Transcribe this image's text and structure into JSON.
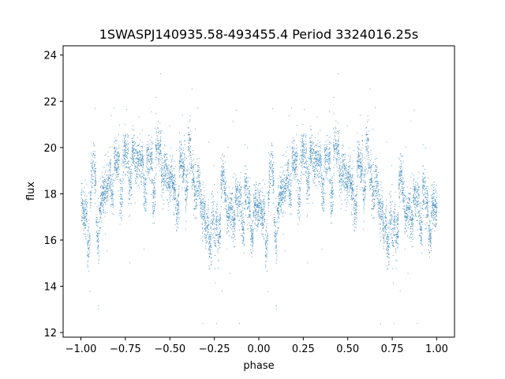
{
  "chart_data": {
    "type": "scatter",
    "title": "1SWASPJ140935.58-493455.4 Period 3324016.25s",
    "xlabel": "phase",
    "ylabel": "flux",
    "xlim": [
      -1.1,
      1.1
    ],
    "ylim": [
      11.8,
      24.4
    ],
    "xticks": [
      -1.0,
      -0.75,
      -0.5,
      -0.25,
      0.0,
      0.25,
      0.5,
      0.75,
      1.0
    ],
    "xtick_labels": [
      "−1.00",
      "−0.75",
      "−0.50",
      "−0.25",
      "0.00",
      "0.25",
      "0.50",
      "0.75",
      "1.00"
    ],
    "yticks": [
      12,
      14,
      16,
      18,
      20,
      22,
      24
    ],
    "ytick_labels": [
      "12",
      "14",
      "16",
      "18",
      "20",
      "22",
      "24"
    ],
    "grid": false,
    "series": [
      {
        "color": "#1f77b4",
        "period_phase": 1.0,
        "x": [
          -1.0,
          -0.99,
          -0.97,
          -0.95,
          -0.93,
          -0.9,
          -0.88,
          -0.85,
          -0.82,
          -0.8,
          -0.78,
          -0.75,
          -0.72,
          -0.7,
          -0.68,
          -0.65,
          -0.62,
          -0.6,
          -0.57,
          -0.55,
          -0.52,
          -0.5,
          -0.47,
          -0.45,
          -0.42,
          -0.4,
          -0.38,
          -0.35,
          -0.33,
          -0.3,
          -0.28,
          -0.25,
          -0.22,
          -0.2,
          -0.18,
          -0.15,
          -0.12,
          -0.1,
          -0.08,
          -0.05,
          -0.03,
          0.0
        ],
        "y": [
          17.3,
          16.8,
          16.6,
          17.2,
          19.0,
          16.3,
          18.0,
          18.3,
          19.0,
          18.9,
          19.0,
          19.2,
          19.3,
          19.5,
          19.4,
          19.0,
          18.9,
          19.0,
          19.4,
          19.6,
          18.7,
          18.8,
          17.7,
          18.6,
          18.8,
          19.8,
          18.7,
          18.4,
          18.2,
          16.0,
          17.0,
          15.8,
          17.7,
          18.5,
          17.4,
          17.2,
          17.3,
          18.1,
          17.2,
          17.3,
          16.9,
          17.3
        ]
      }
    ]
  }
}
